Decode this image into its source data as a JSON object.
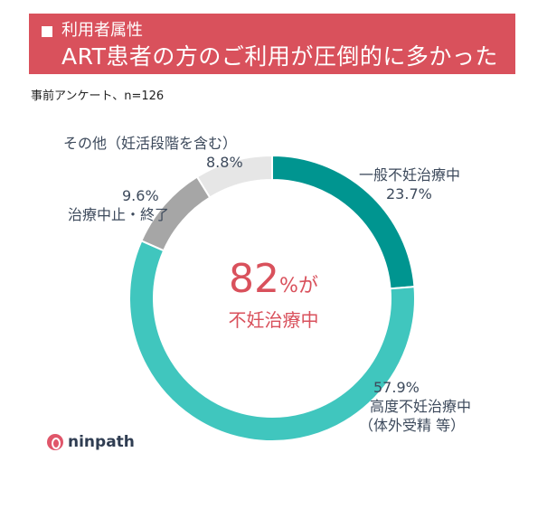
{
  "header": {
    "subtitle": "利用者属性",
    "title": "ART患者の方のご利用が圧倒的に多かった"
  },
  "survey_note": "事前アンケート、n=126",
  "center": {
    "value": "82",
    "unit": "%が",
    "label": "不妊治療中"
  },
  "brand": "ninpath",
  "labels": {
    "general_name": "一般不妊治療中",
    "general_pct": "23.7%",
    "advanced_pct": "57.9%",
    "advanced_name": "高度不妊治療中",
    "advanced_note": "（体外受精 等）",
    "stopped_pct": "9.6%",
    "stopped_name": "治療中止・終了",
    "other_name": "その他（妊活段階を含む）",
    "other_pct": "8.8%"
  },
  "chart_data": {
    "type": "pie",
    "categories": [
      "一般不妊治療中",
      "高度不妊治療中（体外受精 等）",
      "治療中止・終了",
      "その他（妊活段階を含む）"
    ],
    "values": [
      23.7,
      57.9,
      9.6,
      8.8
    ],
    "colors": [
      "#009590",
      "#40c6be",
      "#a6a6a6",
      "#e6e6e6"
    ],
    "donut": true
  }
}
